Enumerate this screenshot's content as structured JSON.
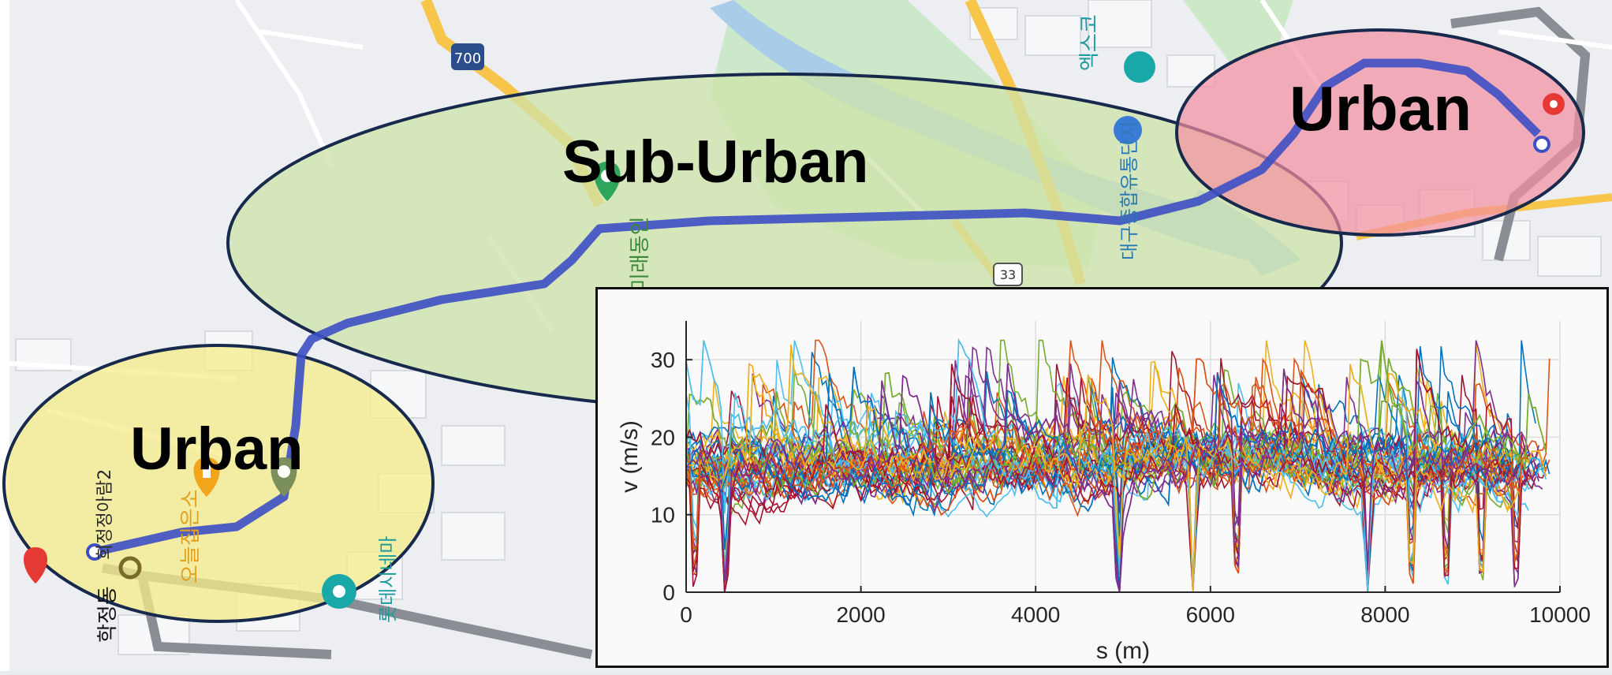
{
  "map": {
    "zones": [
      {
        "id": "urban-northeast",
        "label": "Urban",
        "kind": "urban",
        "color": "#f48fa0"
      },
      {
        "id": "suburban-center",
        "label": "Sub-Urban",
        "kind": "suburban",
        "color": "#cfe3a8"
      },
      {
        "id": "urban-southwest",
        "label": "Urban",
        "kind": "urban",
        "color": "#f5ec8a"
      }
    ],
    "route_color": "#3d4fc4",
    "road_numbers": [
      "700",
      "33"
    ],
    "place_labels": [
      "엑스코",
      "대구종합유통단지",
      "미래동인",
      "희정정아람2",
      "오늘집은소",
      "롯데시네마",
      "학정동"
    ],
    "icons": [
      "park-marker-icon",
      "restaurant-marker-icon",
      "location-marker-icon",
      "destination-pin-icon",
      "hospital-pin-icon"
    ]
  },
  "chart_data": {
    "type": "line",
    "title": "",
    "xlabel": "s (m)",
    "ylabel": "v (m/s)",
    "xlim": [
      0,
      10000
    ],
    "ylim": [
      0,
      35
    ],
    "xticks": [
      "0",
      "2000",
      "4000",
      "6000",
      "8000",
      "10000"
    ],
    "yticks": [
      "0",
      "10",
      "20",
      "30"
    ],
    "grid": true,
    "legend": "none",
    "series_count": 60,
    "series_colors": [
      "#0072BD",
      "#D95319",
      "#EDB120",
      "#7E2F8E",
      "#77AC30",
      "#4DBEEE",
      "#A2142F"
    ],
    "speed_band": {
      "typical_min": 10,
      "typical_max": 22,
      "peak": 32.5
    },
    "stop_locations": [
      100,
      450,
      4950,
      5800,
      6300,
      7800,
      8300,
      8700,
      9100,
      9500
    ],
    "route_length": 9700
  }
}
